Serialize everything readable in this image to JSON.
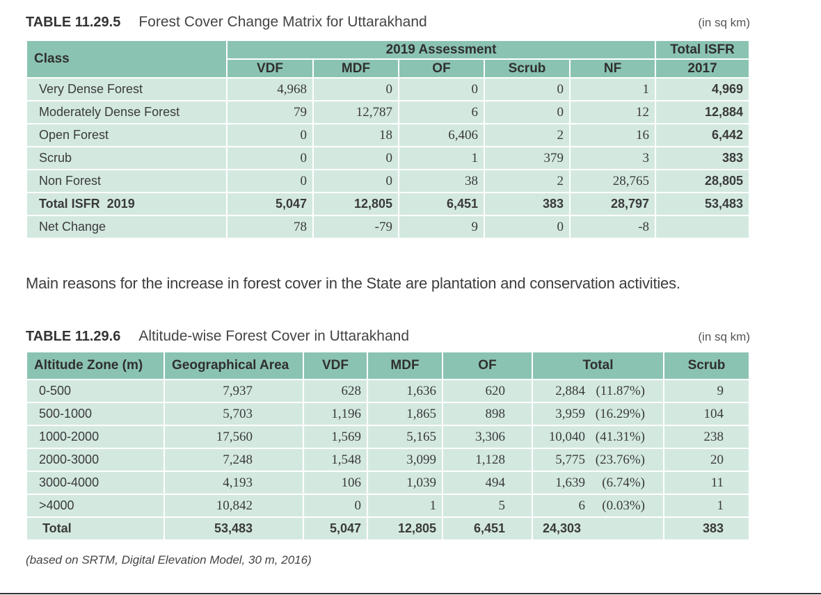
{
  "table1": {
    "number": "TABLE 11.29.5",
    "title": "Forest Cover Change Matrix for Uttarakhand",
    "unit": "(in sq km)",
    "header": {
      "class": "Class",
      "group": "2019 Assessment",
      "total_line1": "Total ISFR",
      "total_line2": "2017",
      "cols": [
        "VDF",
        "MDF",
        "OF",
        "Scrub",
        "NF"
      ]
    },
    "rows": [
      {
        "label": "Very Dense Forest",
        "values": [
          "4,968",
          "0",
          "0",
          "0",
          "1"
        ],
        "total": "4,969"
      },
      {
        "label": "Moderately Dense Forest",
        "values": [
          "79",
          "12,787",
          "6",
          "0",
          "12"
        ],
        "total": "12,884"
      },
      {
        "label": "Open Forest",
        "values": [
          "0",
          "18",
          "6,406",
          "2",
          "16"
        ],
        "total": "6,442"
      },
      {
        "label": "Scrub",
        "values": [
          "0",
          "0",
          "1",
          "379",
          "3"
        ],
        "total": "383"
      },
      {
        "label": "Non Forest",
        "values": [
          "0",
          "0",
          "38",
          "2",
          "28,765"
        ],
        "total": "28,805"
      },
      {
        "label": "Total ISFR  2019",
        "values": [
          "5,047",
          "12,805",
          "6,451",
          "383",
          "28,797"
        ],
        "total": "53,483"
      },
      {
        "label": "Net Change",
        "values": [
          "78",
          "-79",
          "9",
          "0",
          "-8"
        ],
        "total": ""
      }
    ]
  },
  "paragraph": "Main reasons for the increase in forest cover in the State are plantation and conservation activities.",
  "table2": {
    "number": "TABLE 11.29.6",
    "title": "Altitude-wise Forest Cover in Uttarakhand",
    "unit": "(in sq km)",
    "headers": [
      "Altitude Zone (m)",
      "Geographical Area",
      "VDF",
      "MDF",
      "OF",
      "Total",
      "Scrub"
    ],
    "rows": [
      {
        "zone": "0-500",
        "area": "7,937",
        "vdf": "628",
        "mdf": "1,636",
        "of": "620",
        "total": "2,884",
        "pct": "(11.87%)",
        "scrub": "9"
      },
      {
        "zone": "500-1000",
        "area": "5,703",
        "vdf": "1,196",
        "mdf": "1,865",
        "of": "898",
        "total": "3,959",
        "pct": "(16.29%)",
        "scrub": "104"
      },
      {
        "zone": "1000-2000",
        "area": "17,560",
        "vdf": "1,569",
        "mdf": "5,165",
        "of": "3,306",
        "total": "10,040",
        "pct": "(41.31%)",
        "scrub": "238"
      },
      {
        "zone": "2000-3000",
        "area": "7,248",
        "vdf": "1,548",
        "mdf": "3,099",
        "of": "1,128",
        "total": "5,775",
        "pct": "(23.76%)",
        "scrub": "20"
      },
      {
        "zone": "3000-4000",
        "area": "4,193",
        "vdf": "106",
        "mdf": "1,039",
        "of": "494",
        "total": "1,639",
        "pct": "(6.74%)",
        "scrub": "11"
      },
      {
        "zone": ">4000",
        "area": "10,842",
        "vdf": "0",
        "mdf": "1",
        "of": "5",
        "total": "6",
        "pct": "(0.03%)",
        "scrub": "1"
      }
    ],
    "total_row": {
      "zone": "Total",
      "area": "53,483",
      "vdf": "5,047",
      "mdf": "12,805",
      "of": "6,451",
      "total": "24,303",
      "scrub": "383"
    }
  },
  "footnote": "(based on SRTM, Digital Elevation Model, 30 m, 2016)"
}
